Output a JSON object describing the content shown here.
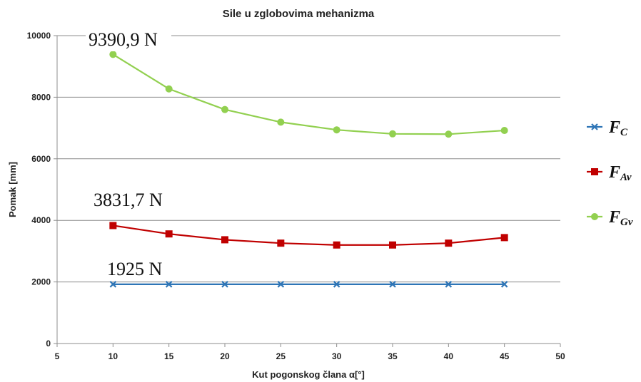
{
  "chart_data": {
    "type": "line",
    "title": "Sile u zglobovima mehanizma",
    "xlabel": "Kut pogonskog člana α[°]",
    "ylabel": "Pomak [mm]",
    "xlim": [
      5,
      50
    ],
    "ylim": [
      0,
      10000
    ],
    "x_ticks": [
      "5",
      "10",
      "15",
      "20",
      "25",
      "30",
      "35",
      "40",
      "45",
      "50"
    ],
    "y_ticks": [
      "0",
      "2000",
      "4000",
      "6000",
      "8000",
      "10000"
    ],
    "grid": "horizontal",
    "legend_position": "right",
    "x": [
      10,
      15,
      20,
      25,
      30,
      35,
      40,
      45
    ],
    "series": [
      {
        "name_main": "F",
        "name_sub": "C",
        "color": "#2e75b6",
        "marker": "x",
        "values": [
          1925,
          1925,
          1925,
          1925,
          1925,
          1925,
          1925,
          1925
        ]
      },
      {
        "name_main": "F",
        "name_sub": "Av",
        "color": "#c00000",
        "marker": "square",
        "values": [
          3831.7,
          3560,
          3370,
          3260,
          3200,
          3200,
          3260,
          3440
        ]
      },
      {
        "name_main": "F",
        "name_sub": "Gv",
        "color": "#92d050",
        "marker": "circle",
        "values": [
          9390.9,
          8270,
          7600,
          7190,
          6940,
          6810,
          6800,
          6920
        ]
      }
    ],
    "annotations": [
      {
        "text": "9390,9 N"
      },
      {
        "text": "3831,7 N"
      },
      {
        "text": "1925 N"
      }
    ]
  }
}
